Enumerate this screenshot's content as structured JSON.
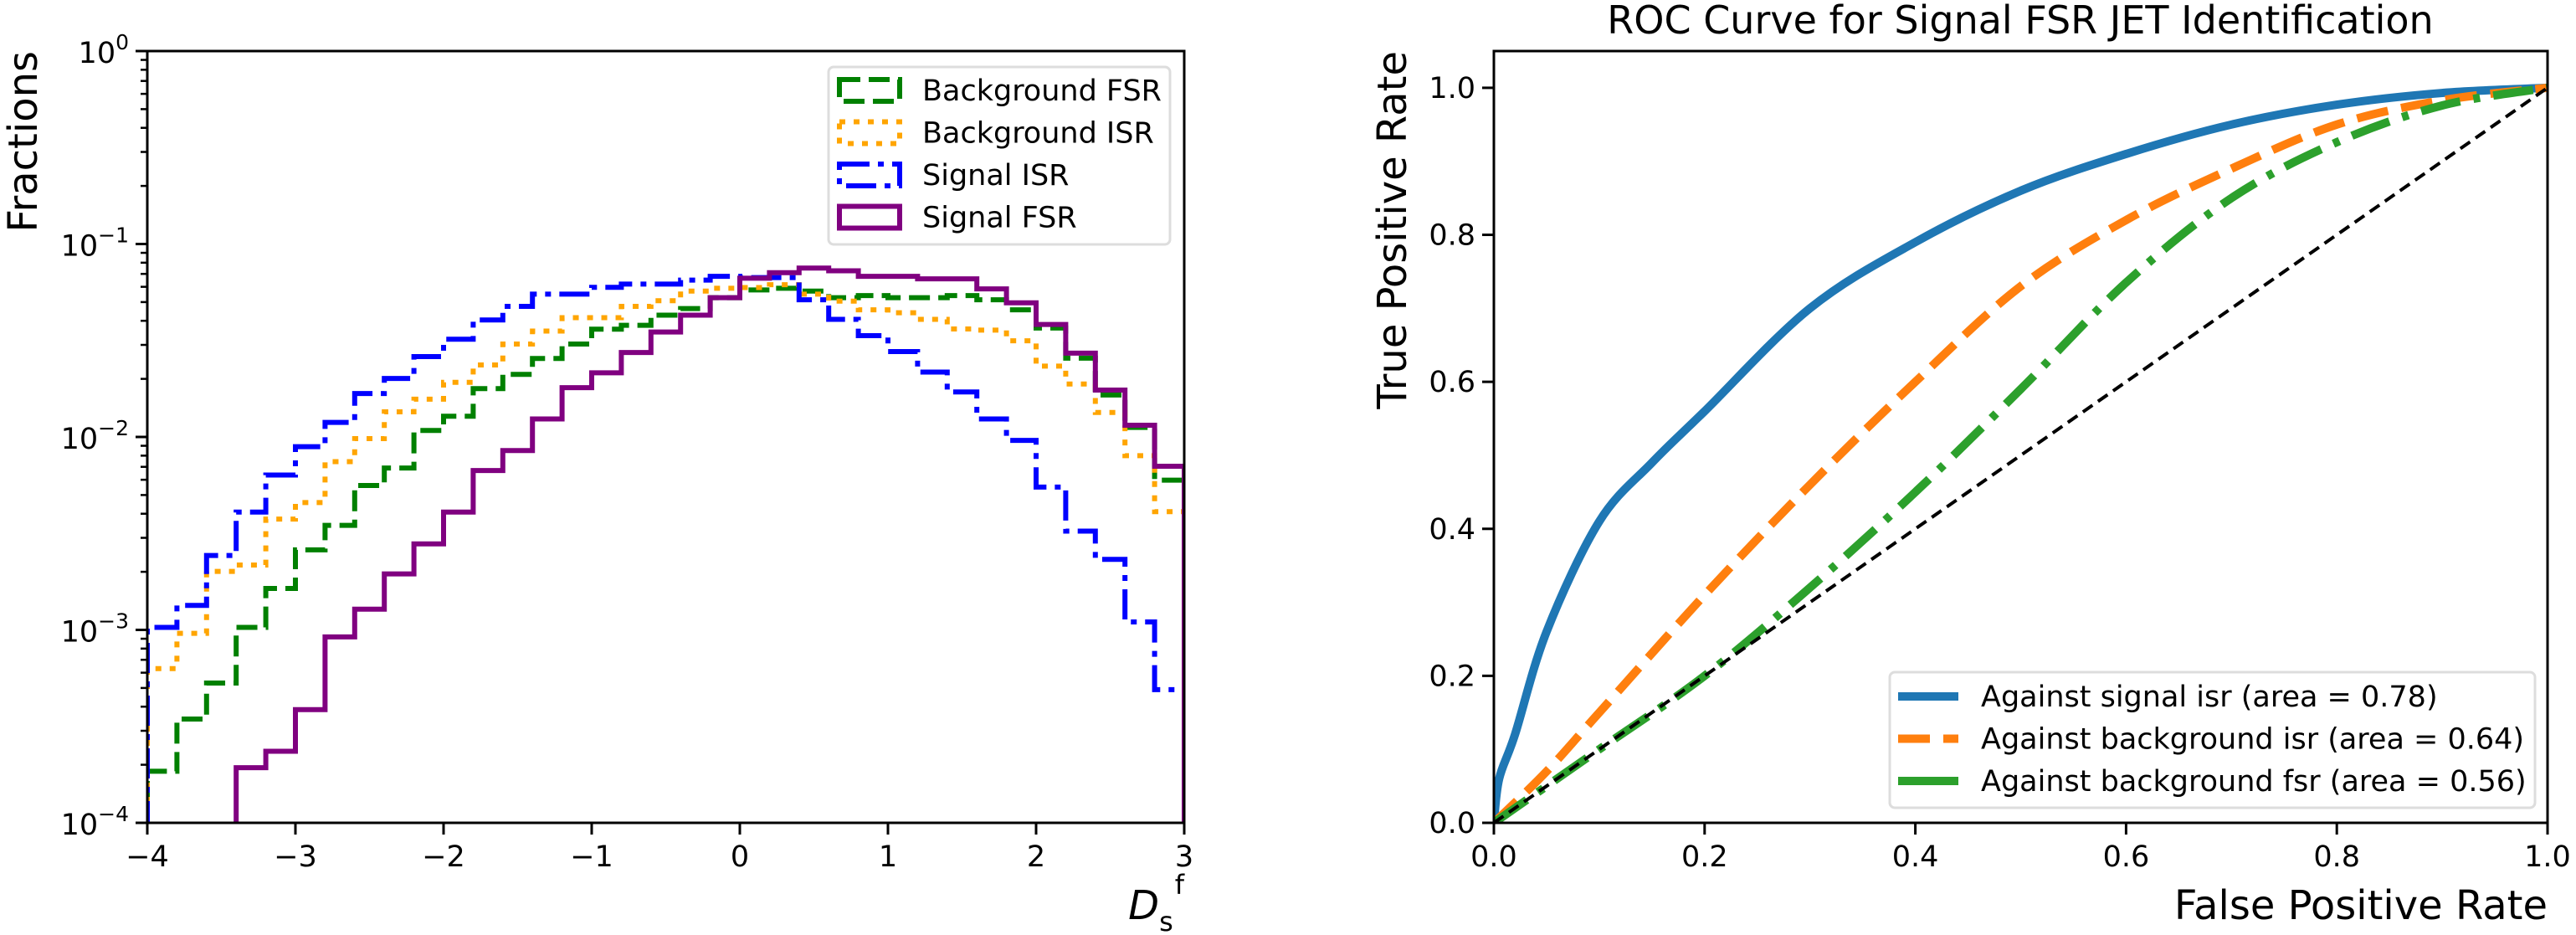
{
  "chart_data": [
    {
      "type": "histogram-step",
      "title": "",
      "xlabel": {
        "main": "D",
        "sub": "s",
        "sup": "f"
      },
      "ylabel": "Fractions",
      "xlim": [
        -4,
        3
      ],
      "ylim": [
        0.0001,
        1
      ],
      "yscale": "log",
      "grid": false,
      "legend_position": "top-right",
      "xticks": [
        -4,
        -3,
        -2,
        -1,
        0,
        1,
        2,
        3
      ],
      "xticklabels": [
        "−4",
        "−3",
        "−2",
        "−1",
        "0",
        "1",
        "2",
        "3"
      ],
      "yticks": [
        1,
        0.1,
        0.01,
        0.001,
        0.0001
      ],
      "yticklabels": [
        {
          "base": "10",
          "exp": "0"
        },
        {
          "base": "10",
          "exp": "−1"
        },
        {
          "base": "10",
          "exp": "−2"
        },
        {
          "base": "10",
          "exp": "−3"
        },
        {
          "base": "10",
          "exp": "−4"
        }
      ],
      "bin_edges_start": -4,
      "bin_width": 0.2,
      "series": [
        {
          "name": "Background FSR",
          "color": "#008000",
          "linestyle": "dashed",
          "values": [
            0.000185,
            0.000345,
            0.00053,
            0.00103,
            0.00164,
            0.0026,
            0.00348,
            0.0056,
            0.0069,
            0.0108,
            0.0128,
            0.0178,
            0.0211,
            0.0255,
            0.0303,
            0.0362,
            0.0379,
            0.0428,
            0.0463,
            0.0527,
            0.0578,
            0.059,
            0.057,
            0.0527,
            0.054,
            0.0527,
            0.0527,
            0.054,
            0.0514,
            0.0456,
            0.0367,
            0.0256,
            0.0165,
            0.0112,
            0.00597
          ]
        },
        {
          "name": "Background ISR",
          "color": "#FFA500",
          "linestyle": "dotted",
          "values": [
            0.00063,
            0.00096,
            0.00201,
            0.00217,
            0.00375,
            0.00457,
            0.00745,
            0.0098,
            0.0135,
            0.0157,
            0.0192,
            0.0236,
            0.0303,
            0.0354,
            0.0415,
            0.0415,
            0.0475,
            0.0508,
            0.057,
            0.059,
            0.0595,
            0.0615,
            0.055,
            0.0506,
            0.0456,
            0.044,
            0.0407,
            0.0363,
            0.0358,
            0.0315,
            0.0233,
            0.0188,
            0.0134,
            0.008,
            0.0041
          ]
        },
        {
          "name": "Signal ISR",
          "color": "#0000FF",
          "linestyle": "dashdot",
          "values": [
            0.00103,
            0.00134,
            0.00243,
            0.00408,
            0.00635,
            0.0089,
            0.0119,
            0.0168,
            0.0201,
            0.0261,
            0.0321,
            0.0404,
            0.0475,
            0.055,
            0.055,
            0.0596,
            0.062,
            0.062,
            0.065,
            0.068,
            0.067,
            0.067,
            0.0514,
            0.0407,
            0.0335,
            0.0277,
            0.0217,
            0.0171,
            0.0124,
            0.0096,
            0.0055,
            0.00325,
            0.00232,
            0.0011,
            0.00049
          ]
        },
        {
          "name": "Signal FSR",
          "color": "#800080",
          "linestyle": "solid",
          "values": [
            0,
            0,
            0,
            0.000193,
            0.000235,
            0.000386,
            0.00092,
            0.00128,
            0.00195,
            0.00279,
            0.00408,
            0.0067,
            0.0085,
            0.0124,
            0.018,
            0.0215,
            0.0274,
            0.035,
            0.0428,
            0.0527,
            0.0665,
            0.071,
            0.075,
            0.0726,
            0.068,
            0.068,
            0.066,
            0.066,
            0.0585,
            0.0496,
            0.0383,
            0.0272,
            0.0175,
            0.0115,
            0.00705
          ]
        }
      ]
    },
    {
      "type": "line",
      "title": "ROC Curve for Signal FSR JET Identification",
      "xlabel": "False Positive Rate",
      "ylabel": "True Positive Rate",
      "xlim": [
        0,
        1
      ],
      "ylim": [
        0,
        1.05
      ],
      "grid": false,
      "legend_position": "lower-right",
      "xticks": [
        0,
        0.2,
        0.4,
        0.6,
        0.8,
        1.0
      ],
      "xticklabels": [
        "0.0",
        "0.2",
        "0.4",
        "0.6",
        "0.8",
        "1.0"
      ],
      "yticks": [
        0,
        0.2,
        0.4,
        0.6,
        0.8,
        1.0
      ],
      "yticklabels": [
        "0.0",
        "0.2",
        "0.4",
        "0.6",
        "0.8",
        "1.0"
      ],
      "series": [
        {
          "name": "Against signal isr (area = 0.78)",
          "color": "#1f77b4",
          "linestyle": "solid",
          "x": [
            0,
            0.005,
            0.02,
            0.05,
            0.1,
            0.15,
            0.2,
            0.3,
            0.4,
            0.5,
            0.6,
            0.7,
            0.8,
            0.9,
            1.0
          ],
          "y": [
            0,
            0.06,
            0.12,
            0.26,
            0.41,
            0.49,
            0.56,
            0.7,
            0.79,
            0.86,
            0.91,
            0.95,
            0.977,
            0.993,
            1.0
          ]
        },
        {
          "name": "Against background isr (area = 0.64)",
          "color": "#ff7f0e",
          "linestyle": "dashed",
          "x": [
            0,
            0.05,
            0.1,
            0.2,
            0.3,
            0.4,
            0.5,
            0.6,
            0.7,
            0.8,
            0.9,
            1.0
          ],
          "y": [
            0,
            0.07,
            0.15,
            0.31,
            0.46,
            0.6,
            0.73,
            0.82,
            0.89,
            0.95,
            0.983,
            1.0
          ]
        },
        {
          "name": "Against background fsr (area = 0.56)",
          "color": "#2ca02c",
          "linestyle": "dashdot",
          "x": [
            0,
            0.05,
            0.1,
            0.2,
            0.3,
            0.4,
            0.5,
            0.6,
            0.7,
            0.8,
            0.9,
            1.0
          ],
          "y": [
            0,
            0.05,
            0.1,
            0.2,
            0.32,
            0.45,
            0.59,
            0.735,
            0.85,
            0.926,
            0.976,
            1.0
          ]
        },
        {
          "color": "#000000",
          "linestyle": "dashed",
          "x": [
            0,
            1
          ],
          "y": [
            0,
            1
          ]
        }
      ]
    }
  ]
}
